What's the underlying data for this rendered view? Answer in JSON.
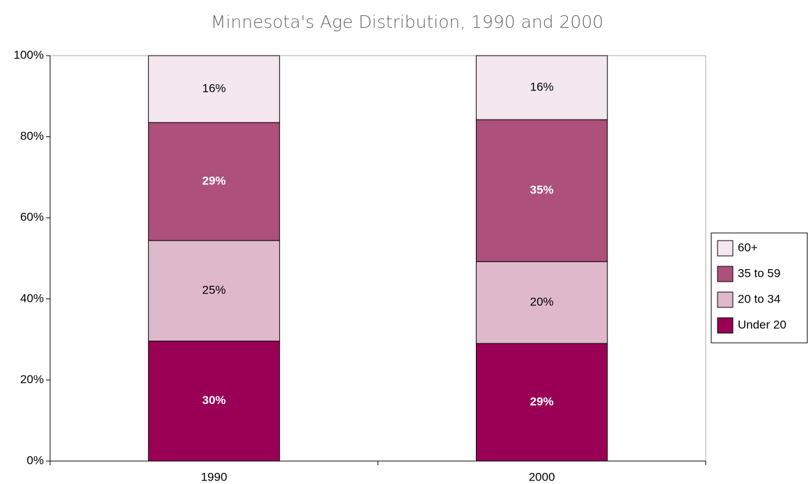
{
  "chart_data": {
    "type": "stacked_bar_percent",
    "title": "Minnesota's Age Distribution, 1990 and 2000",
    "categories": [
      "1990",
      "2000"
    ],
    "series": [
      {
        "name": "Under 20",
        "color": "#990055",
        "values": [
          29.6,
          29.0
        ],
        "value_labels": [
          "30%",
          "29%"
        ]
      },
      {
        "name": "20 to 34",
        "color": "#dfb9cb",
        "values": [
          24.8,
          20.2
        ],
        "value_labels": [
          "25%",
          "20%"
        ]
      },
      {
        "name": "35 to 59",
        "color": "#ae507c",
        "values": [
          29.1,
          35.0
        ],
        "value_labels": [
          "29%",
          "35%"
        ]
      },
      {
        "name": "60+",
        "color": "#f4e8ee",
        "values": [
          16.5,
          15.8
        ],
        "value_labels": [
          "16%",
          "16%"
        ]
      }
    ],
    "ylim": [
      0,
      100
    ],
    "yticks": [
      {
        "value": 0,
        "label": "0%"
      },
      {
        "value": 20,
        "label": "20%"
      },
      {
        "value": 40,
        "label": "40%"
      },
      {
        "value": 60,
        "label": "60%"
      },
      {
        "value": 80,
        "label": "80%"
      },
      {
        "value": 100,
        "label": "100%"
      }
    ],
    "grid": false,
    "legend": "right"
  }
}
